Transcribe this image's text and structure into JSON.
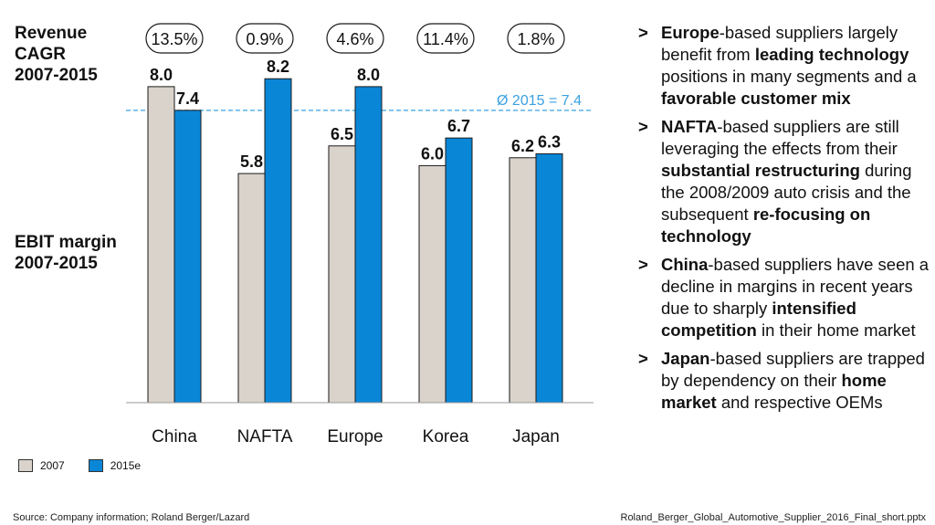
{
  "labels": {
    "cagr": "Revenue\nCAGR\n2007-2015",
    "ebit": "EBIT margin\n2007-2015"
  },
  "chart_data": {
    "type": "bar",
    "categories": [
      "China",
      "NAFTA",
      "Europe",
      "Korea",
      "Japan"
    ],
    "series": [
      {
        "name": "2007",
        "values": [
          8.0,
          5.8,
          6.5,
          6.0,
          6.2
        ],
        "color": "#d9d3cb"
      },
      {
        "name": "2015e",
        "values": [
          7.4,
          8.2,
          8.0,
          6.7,
          6.3
        ],
        "color": "#0a86d6"
      }
    ],
    "revenue_cagr": [
      "13.5%",
      "0.9%",
      "4.6%",
      "11.4%",
      "1.8%"
    ],
    "reference_line": {
      "value": 7.4,
      "label": "Ø 2015 = 7.4",
      "color": "#3aa0e0"
    },
    "ylim": [
      0,
      9.5
    ],
    "title": "",
    "xlabel": "",
    "ylabel": "EBIT margin"
  },
  "colors": {
    "outline": "#1a1a1a",
    "text": "#111111"
  },
  "bullets": [
    [
      {
        "t": "Europe",
        "b": true
      },
      {
        "t": "-based suppliers largely benefit from "
      },
      {
        "t": "leading technology",
        "b": true
      },
      {
        "t": " positions in many segments and a "
      },
      {
        "t": "favorable customer mix",
        "b": true
      }
    ],
    [
      {
        "t": "NAFTA",
        "b": true
      },
      {
        "t": "-based suppliers are still leveraging the effects from their "
      },
      {
        "t": "substantial restructuring",
        "b": true
      },
      {
        "t": " during the 2008/2009 auto crisis and the subsequent "
      },
      {
        "t": "re-focusing on technology",
        "b": true
      }
    ],
    [
      {
        "t": "China",
        "b": true
      },
      {
        "t": "-based suppliers have seen a decline in margins in recent years due to sharply "
      },
      {
        "t": "intensified competition",
        "b": true
      },
      {
        "t": " in their home market"
      }
    ],
    [
      {
        "t": "Japan",
        "b": true
      },
      {
        "t": "-based suppliers are trapped by dependency on their "
      },
      {
        "t": "home market",
        "b": true
      },
      {
        "t": " and respective OEMs"
      }
    ]
  ],
  "bullet_marker": ">",
  "footer": {
    "source": "Source: Company information; Roland Berger/Lazard",
    "file": "Roland_Berger_Global_Automotive_Supplier_2016_Final_short.pptx"
  }
}
